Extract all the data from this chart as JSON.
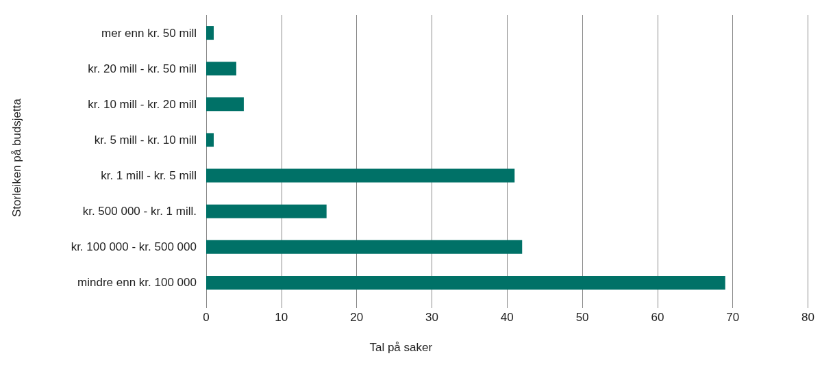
{
  "chart_data": {
    "type": "bar",
    "orientation": "horizontal",
    "ylabel": "Storleiken på budsjetta",
    "xlabel": "Tal på saker",
    "categories": [
      "mer enn kr. 50 mill",
      "kr. 20 mill - kr. 50 mill",
      "kr. 10 mill - kr. 20 mill",
      "kr. 5 mill - kr. 10 mill",
      "kr. 1 mill - kr. 5 mill",
      "kr. 500 000 - kr. 1 mill.",
      "kr. 100 000 - kr. 500 000",
      "mindre enn kr. 100 000"
    ],
    "values": [
      1,
      4,
      5,
      1,
      41,
      16,
      42,
      69
    ],
    "color": "#007167",
    "xlim": [
      0,
      80
    ],
    "xticks": [
      0,
      10,
      20,
      30,
      40,
      50,
      60,
      70,
      80
    ],
    "grid": "x"
  }
}
